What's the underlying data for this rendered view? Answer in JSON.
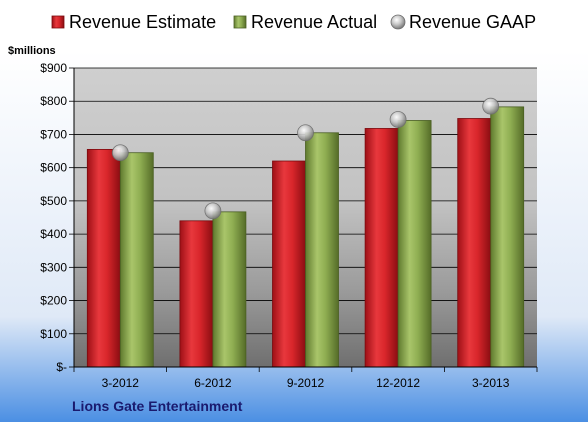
{
  "chart_data": {
    "type": "bar",
    "categories": [
      "3-2012",
      "6-2012",
      "9-2012",
      "12-2012",
      "3-2013"
    ],
    "series": [
      {
        "name": "Revenue Estimate",
        "values": [
          655,
          440,
          620,
          718,
          748
        ],
        "color": "#d9262b",
        "kind": "bar"
      },
      {
        "name": "Revenue Actual",
        "values": [
          645,
          467,
          705,
          742,
          783
        ],
        "color": "#8fae52",
        "kind": "bar"
      },
      {
        "name": "Revenue GAAP",
        "values": [
          645,
          470,
          705,
          745,
          785
        ],
        "color": "#bdbdbd",
        "kind": "marker"
      }
    ],
    "ylim": [
      0,
      900
    ],
    "yticks": [
      0,
      100,
      200,
      300,
      400,
      500,
      600,
      700,
      800,
      900
    ],
    "ytick_labels": [
      "$-",
      "$100",
      "$200",
      "$300",
      "$400",
      "$500",
      "$600",
      "$700",
      "$800",
      "$900"
    ],
    "ylabel": "$millions",
    "grid": true,
    "legend_position": "top",
    "company": "Lions Gate Entertainment"
  }
}
